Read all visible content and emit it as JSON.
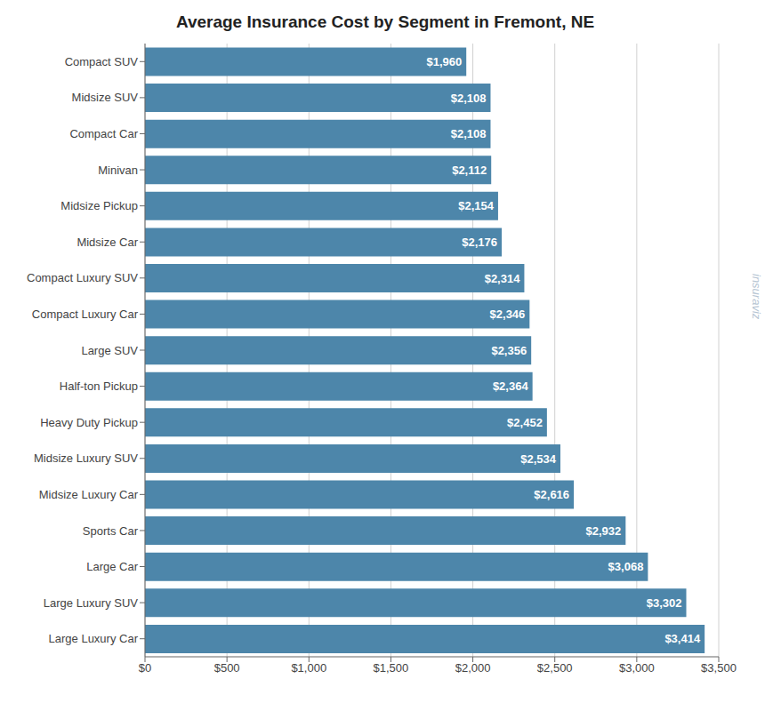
{
  "chart_data": {
    "type": "bar",
    "orientation": "horizontal",
    "title": "Average Insurance Cost by Segment in Fremont, NE",
    "categories": [
      "Compact SUV",
      "Midsize SUV",
      "Compact Car",
      "Minivan",
      "Midsize Pickup",
      "Midsize Car",
      "Compact Luxury SUV",
      "Compact Luxury Car",
      "Large SUV",
      "Half-ton Pickup",
      "Heavy Duty Pickup",
      "Midsize Luxury SUV",
      "Midsize Luxury Car",
      "Sports Car",
      "Large Car",
      "Large Luxury SUV",
      "Large Luxury Car"
    ],
    "values": [
      1960,
      2108,
      2108,
      2112,
      2154,
      2176,
      2314,
      2346,
      2356,
      2364,
      2452,
      2534,
      2616,
      2932,
      3068,
      3302,
      3414
    ],
    "value_labels": [
      "$1,960",
      "$2,108",
      "$2,108",
      "$2,112",
      "$2,154",
      "$2,176",
      "$2,314",
      "$2,346",
      "$2,356",
      "$2,364",
      "$2,452",
      "$2,534",
      "$2,616",
      "$2,932",
      "$3,068",
      "$3,302",
      "$3,414"
    ],
    "data_labels": true,
    "color": "#4d86aa",
    "xlim": [
      0,
      3500
    ],
    "xticks": [
      {
        "value": 0,
        "label": "$0"
      },
      {
        "value": 500,
        "label": "$500"
      },
      {
        "value": 1000,
        "label": "$1,000"
      },
      {
        "value": 1500,
        "label": "$1,500"
      },
      {
        "value": 2000,
        "label": "$2,000"
      },
      {
        "value": 2500,
        "label": "$2,500"
      },
      {
        "value": 3000,
        "label": "$3,000"
      },
      {
        "value": 3500,
        "label": "$3,500"
      }
    ],
    "grid": true,
    "annotations": [
      "insuraviz"
    ]
  }
}
